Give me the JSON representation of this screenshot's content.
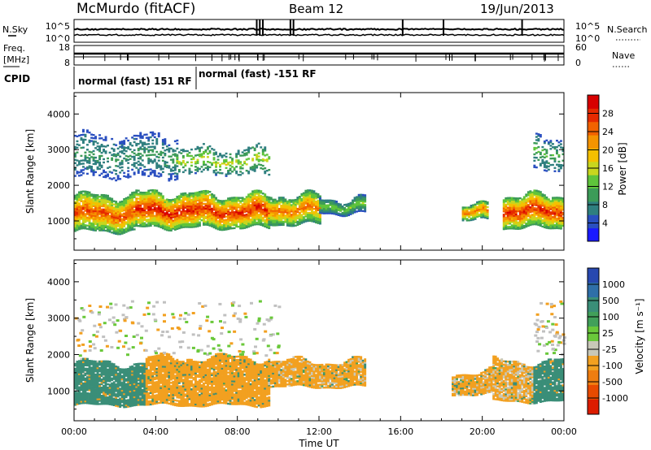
{
  "header": {
    "station": "McMurdo (fitACF)",
    "beam": "Beam 12",
    "date": "19/Jun/2013"
  },
  "status_panels": {
    "left_labels": {
      "nsky": "N.Sky",
      "freq": "Freq.",
      "freq_unit": "[MHz]",
      "cpid": "CPID"
    },
    "right_labels": {
      "nsearch": "N.Search",
      "nave": "Nave"
    },
    "noise_ticks": {
      "top": "10^5",
      "bottom": "10^0"
    },
    "freq_ticks": {
      "top": "18",
      "bottom": "8"
    },
    "nave_ticks": {
      "top": "60",
      "bottom": "0"
    },
    "cpid_segments": [
      {
        "label": "normal (fast) 151 RF",
        "start_hour": 0.0
      },
      {
        "label": "normal (fast) -151 RF",
        "start_hour": 6.05
      }
    ]
  },
  "axes": {
    "xlabel": "Time UT",
    "ylabel": "Slant Range [km]",
    "x_ticks": [
      "00:00",
      "04:00",
      "08:00",
      "12:00",
      "16:00",
      "20:00",
      "00:00"
    ],
    "y_ticks": [
      "1000",
      "2000",
      "3000",
      "4000"
    ]
  },
  "colorbars": {
    "power": {
      "label": "Power [dB]",
      "ticks": [
        "4",
        "8",
        "12",
        "16",
        "20",
        "24",
        "28"
      ]
    },
    "velocity": {
      "label": "Velocity [m s⁻¹]",
      "ticks": [
        "1000",
        "500",
        "100",
        "25",
        "-25",
        "-100",
        "-500",
        "-1000"
      ]
    }
  },
  "colors": {
    "power_scale": [
      "#1a1aff",
      "#2a4fc0",
      "#2f7f7f",
      "#3c9b58",
      "#5fc43b",
      "#c8d61e",
      "#f5c000",
      "#f59400",
      "#f26200",
      "#e62a00",
      "#d80000"
    ],
    "velocity_scale": [
      "#2848b0",
      "#2f6fa8",
      "#3a8e78",
      "#41a05a",
      "#6ac83a",
      "#c8c8b8",
      "#f2a020",
      "#ef7d10",
      "#e84a00",
      "#dc1c00"
    ],
    "ground_scatter": "#c0c0c0"
  },
  "chart_data": [
    {
      "type": "heatmap",
      "panel": "power",
      "xlabel": "Time UT",
      "ylabel": "Slant Range [km]",
      "xlim_hours": [
        0,
        24
      ],
      "ylim_km": [
        180,
        4600
      ],
      "colorbar": {
        "label": "Power [dB]",
        "range": [
          0,
          30
        ]
      },
      "scatter_bands": [
        {
          "t_start": 0.0,
          "t_end": 3.0,
          "range_km": [
            700,
            1700
          ],
          "peak_db": 24
        },
        {
          "t_start": 3.0,
          "t_end": 6.0,
          "range_km": [
            800,
            1750
          ],
          "peak_db": 27
        },
        {
          "t_start": 6.0,
          "t_end": 9.5,
          "range_km": [
            800,
            1700
          ],
          "peak_db": 26
        },
        {
          "t_start": 9.5,
          "t_end": 12.0,
          "range_km": [
            900,
            1700
          ],
          "peak_db": 22
        },
        {
          "t_start": 12.0,
          "t_end": 14.2,
          "range_km": [
            1200,
            1600
          ],
          "peak_db": 12
        },
        {
          "t_start": 19.0,
          "t_end": 20.3,
          "range_km": [
            1000,
            1400
          ],
          "peak_db": 22
        },
        {
          "t_start": 21.0,
          "t_end": 24.0,
          "range_km": [
            800,
            1700
          ],
          "peak_db": 26
        }
      ],
      "weak_echoes": [
        {
          "t_start": 0.0,
          "t_end": 5.0,
          "range_km": [
            2200,
            3400
          ],
          "peak_db": 8
        },
        {
          "t_start": 5.0,
          "t_end": 9.5,
          "range_km": [
            2300,
            3000
          ],
          "peak_db": 14
        },
        {
          "t_start": 22.5,
          "t_end": 24.0,
          "range_km": [
            2400,
            3300
          ],
          "peak_db": 10
        }
      ]
    },
    {
      "type": "heatmap",
      "panel": "velocity",
      "xlabel": "Time UT",
      "ylabel": "Slant Range [km]",
      "xlim_hours": [
        0,
        24
      ],
      "ylim_km": [
        180,
        4600
      ],
      "colorbar": {
        "label": "Velocity [m s⁻¹]",
        "levels": [
          1000,
          500,
          100,
          25,
          -25,
          -100,
          -500,
          -1000
        ]
      },
      "scatter_bands": [
        {
          "t_start": 0.0,
          "t_end": 3.5,
          "range_km": [
            600,
            1750
          ],
          "velocity": 200
        },
        {
          "t_start": 3.5,
          "t_end": 9.5,
          "range_km": [
            600,
            1900
          ],
          "velocity": -200
        },
        {
          "t_start": 9.5,
          "t_end": 14.2,
          "range_km": [
            1100,
            1800
          ],
          "velocity": -150
        },
        {
          "t_start": 18.5,
          "t_end": 20.5,
          "range_km": [
            900,
            1500
          ],
          "velocity": -150
        },
        {
          "t_start": 20.5,
          "t_end": 22.5,
          "range_km": [
            700,
            1800
          ],
          "velocity": -120
        },
        {
          "t_start": 22.5,
          "t_end": 24.0,
          "range_km": [
            700,
            1800
          ],
          "velocity": 200
        }
      ]
    }
  ]
}
